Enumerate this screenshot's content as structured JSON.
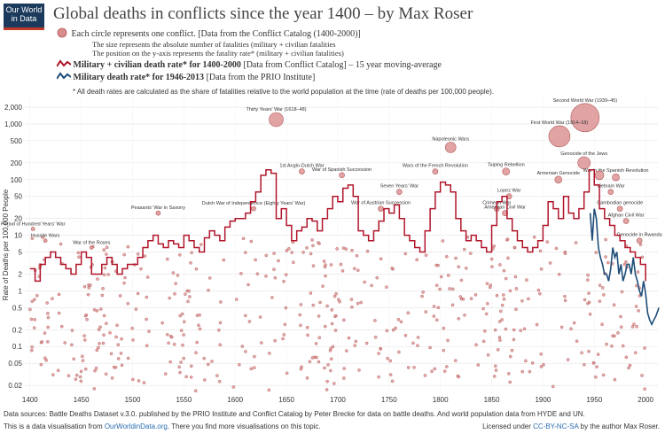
{
  "logo": {
    "line1": "Our World",
    "line2": "in Data"
  },
  "title": "Global deaths in conflicts since the year 1400 – by Max Roser",
  "legend": {
    "circle_line": "Each circle represents one conflict. [Data from the Conflict Catalog (1400-2000)]",
    "size_line": "The size represents the absolute number of fatalities (military + civilian fatalities",
    "position_line": "The position on the y-axis represents the fatality rate* (military + civilian fatalities)",
    "red_label": "Military + civilian death rate* for 1400-2000",
    "red_source": "[Data from Conflict Catalog] – 15 year moving-average",
    "blue_label": "Military death rate* for 1946-2013",
    "blue_source": "[Data from the PRIO Institute]",
    "footnote": "* All death rates are calculated as the share of fatalities relative to the world population at the time (rate of deaths per 100,000 people)."
  },
  "colors": {
    "red_line": "#b0152a",
    "blue_line": "#1f4e79",
    "circle_fill": "#d98c8c",
    "circle_stroke": "#b35a5a",
    "logo_bg": "#1b3a5c"
  },
  "chart_data": {
    "type": "scatter",
    "ylabel": "Rate of Deaths per 100,000 People",
    "x_ticks": [
      1400,
      1450,
      1500,
      1550,
      1600,
      1650,
      1700,
      1750,
      1800,
      1850,
      1900,
      1950,
      2000
    ],
    "y_ticks": [
      0.02,
      0.05,
      0.1,
      0.2,
      0.5,
      1,
      2,
      5,
      10,
      20,
      50,
      100,
      200,
      500,
      1000,
      2000
    ],
    "y_tick_labels": [
      "0.02",
      "0.05",
      "0.1",
      "0.2",
      "0.5",
      "1",
      "2",
      "5",
      "10",
      "20",
      "50",
      "100",
      "200",
      "500",
      "1,000",
      "2,000"
    ],
    "xlim": [
      1395,
      2012
    ],
    "ylim": [
      0.015,
      3000
    ],
    "y_scale": "log",
    "red_series": {
      "x": [
        1400,
        1405,
        1410,
        1415,
        1420,
        1425,
        1430,
        1435,
        1440,
        1445,
        1450,
        1455,
        1460,
        1465,
        1470,
        1475,
        1480,
        1485,
        1490,
        1495,
        1500,
        1505,
        1510,
        1515,
        1520,
        1525,
        1530,
        1535,
        1540,
        1545,
        1550,
        1555,
        1560,
        1565,
        1570,
        1575,
        1580,
        1585,
        1590,
        1595,
        1600,
        1605,
        1610,
        1615,
        1620,
        1625,
        1630,
        1635,
        1640,
        1645,
        1650,
        1655,
        1660,
        1665,
        1670,
        1675,
        1680,
        1685,
        1690,
        1695,
        1700,
        1705,
        1710,
        1715,
        1720,
        1725,
        1730,
        1735,
        1740,
        1745,
        1750,
        1755,
        1760,
        1765,
        1770,
        1775,
        1780,
        1785,
        1790,
        1795,
        1800,
        1805,
        1810,
        1815,
        1820,
        1825,
        1830,
        1835,
        1840,
        1845,
        1850,
        1855,
        1860,
        1865,
        1870,
        1875,
        1880,
        1885,
        1890,
        1895,
        1900,
        1905,
        1910,
        1915,
        1920,
        1925,
        1930,
        1935,
        1940,
        1945,
        1950,
        1955,
        1960,
        1965,
        1970,
        1975,
        1980,
        1985,
        1990,
        1995,
        2000
      ],
      "y": [
        2.5,
        1.5,
        3,
        4,
        5,
        4,
        3,
        2.5,
        2,
        3,
        5,
        4,
        2,
        2,
        3,
        4,
        3,
        2,
        2.5,
        3,
        3,
        4,
        6,
        8,
        10,
        7,
        6,
        8,
        7,
        6,
        10,
        8,
        6,
        5,
        9,
        12,
        10,
        8,
        14,
        18,
        20,
        20,
        25,
        40,
        60,
        120,
        150,
        130,
        20,
        30,
        15,
        8,
        12,
        14,
        20,
        18,
        12,
        20,
        30,
        50,
        40,
        70,
        80,
        50,
        12,
        10,
        8,
        12,
        18,
        30,
        25,
        35,
        20,
        10,
        8,
        6,
        5,
        12,
        30,
        60,
        90,
        80,
        60,
        20,
        12,
        8,
        10,
        8,
        6,
        5,
        15,
        40,
        50,
        20,
        12,
        8,
        6,
        5,
        6,
        8,
        15,
        40,
        30,
        20,
        50,
        25,
        20,
        30,
        60,
        150,
        80,
        30,
        20,
        15,
        10,
        8,
        6,
        5,
        4,
        3,
        1.5
      ]
    },
    "blue_series": {
      "x": [
        1946,
        1948,
        1950,
        1952,
        1954,
        1956,
        1958,
        1960,
        1962,
        1964,
        1966,
        1968,
        1970,
        1972,
        1974,
        1976,
        1978,
        1980,
        1982,
        1984,
        1986,
        1988,
        1990,
        1992,
        1994,
        1996,
        1998,
        2000,
        2002,
        2004,
        2006,
        2008,
        2010,
        2013
      ],
      "y": [
        25,
        8,
        30,
        20,
        6,
        4,
        3,
        2,
        2,
        1.5,
        2.5,
        6,
        4,
        5,
        2,
        3,
        1.5,
        2,
        3,
        3,
        2,
        4,
        2,
        1.5,
        1,
        0.8,
        1.5,
        0.9,
        0.4,
        0.3,
        0.25,
        0.3,
        0.35,
        0.5
      ]
    },
    "bubbles": [
      {
        "x": 1640,
        "y": 1200,
        "r": 8,
        "label": "Thirty Years' War (1618–48)"
      },
      {
        "x": 1941,
        "y": 1300,
        "r": 16,
        "label": "Second World War (1939–45)"
      },
      {
        "x": 1916,
        "y": 600,
        "r": 12,
        "label": "First World War (1914–18)"
      },
      {
        "x": 1810,
        "y": 380,
        "r": 6,
        "label": "Napoleonic Wars"
      },
      {
        "x": 1940,
        "y": 200,
        "r": 7,
        "label": "Genocide of the Jews"
      },
      {
        "x": 1864,
        "y": 140,
        "r": 4,
        "label": "Taiping Rebellion"
      },
      {
        "x": 1915,
        "y": 100,
        "r": 4,
        "label": "Armenian Genocide"
      },
      {
        "x": 1971,
        "y": 110,
        "r": 4,
        "label": "War in the Spanish Revolution"
      },
      {
        "x": 1955,
        "y": 120,
        "r": 5,
        "label": ""
      },
      {
        "x": 1665,
        "y": 140,
        "r": 3,
        "label": "1st Anglo-Dutch War"
      },
      {
        "x": 1704,
        "y": 120,
        "r": 3,
        "label": "War of Spanish Succession"
      },
      {
        "x": 1795,
        "y": 140,
        "r": 3,
        "label": "Wars of the French Revolution"
      },
      {
        "x": 1760,
        "y": 60,
        "r": 3,
        "label": "Seven Years' War"
      },
      {
        "x": 1742,
        "y": 30,
        "r": 3,
        "label": "War of Austrian Succession"
      },
      {
        "x": 1867,
        "y": 50,
        "r": 3,
        "label": "Lopez War"
      },
      {
        "x": 1855,
        "y": 30,
        "r": 3,
        "label": "Crimean War"
      },
      {
        "x": 1863,
        "y": 25,
        "r": 3,
        "label": "American Civil War"
      },
      {
        "x": 1966,
        "y": 60,
        "r": 3,
        "label": "Vietnam War"
      },
      {
        "x": 1975,
        "y": 30,
        "r": 3,
        "label": "Cambodian genocide"
      },
      {
        "x": 1981,
        "y": 18,
        "r": 3,
        "label": "Afghan Civil War"
      },
      {
        "x": 1994,
        "y": 8,
        "r": 3,
        "label": "Genocide in Rwanda"
      },
      {
        "x": 1525,
        "y": 25,
        "r": 2.5,
        "label": "Peasants' War in Saxony"
      },
      {
        "x": 1618,
        "y": 30,
        "r": 2.5,
        "label": "Dutch War of Independence (Eighty Years' War)"
      },
      {
        "x": 1415,
        "y": 8,
        "r": 2,
        "label": "Hussite Wars"
      },
      {
        "x": 1460,
        "y": 6,
        "r": 2,
        "label": "War of the Roses"
      },
      {
        "x": 1403,
        "y": 13,
        "r": 2,
        "label": "Period of Hundred Years' War"
      }
    ]
  },
  "footer": {
    "sources": "Data sources: Battle Deaths Dataset v.3.0. published by the PRIO Institute and Conflict Catalog by Peter Brecke for data on battle deaths. And world population data from HYDE and UN.",
    "vis_pre": "This is a data visualisation from ",
    "vis_link": "OurWorldinData.org",
    "vis_post": ". There you find more visualisations on this topic.",
    "license_pre": "Licensed under ",
    "license_link": "CC-BY-NC-SA",
    "license_post": " by the author Max Roser."
  }
}
